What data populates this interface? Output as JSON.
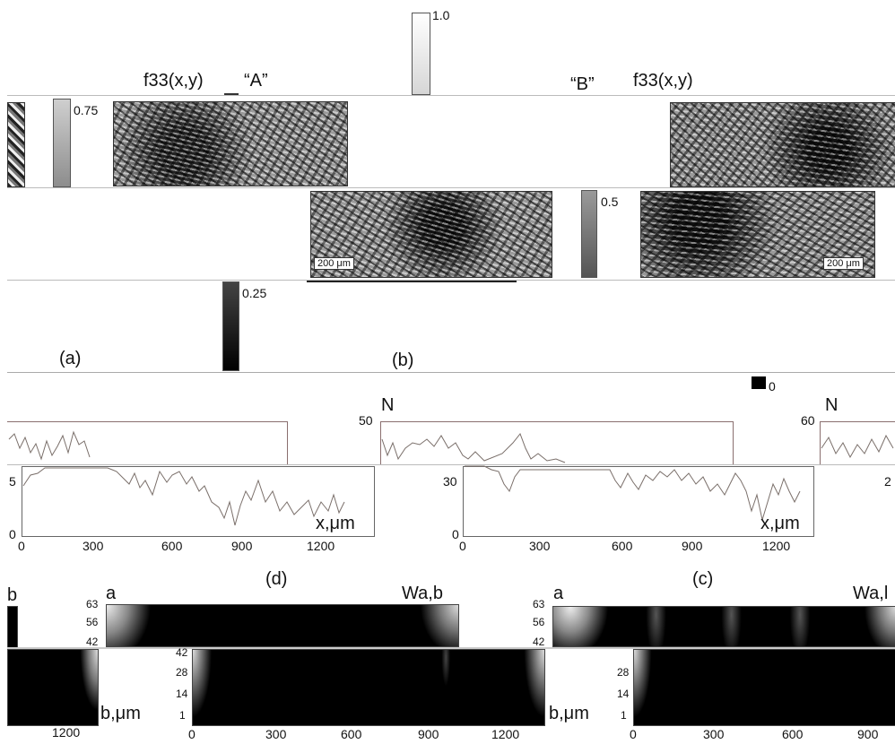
{
  "figure": {
    "maps_section": {
      "label_f33_left": "f33(x,y)",
      "label_A": "“A”",
      "label_B": "“B”",
      "label_f33_right": "f33(x,y)",
      "colorbar_ticks": [
        "1.0",
        "0.75",
        "0.5",
        "0.25",
        "0"
      ],
      "scalebar_label": "200 μm",
      "panel_a": "(a)",
      "panel_b": "(b)"
    },
    "profiles_section": {
      "ylabel": "N",
      "xlabel": "x,μm",
      "left_y_ticks": [
        "5",
        "0"
      ],
      "mid_y_ticks": [
        "50",
        "30",
        "0"
      ],
      "right_y_ticks": [
        "60",
        "2"
      ],
      "x_ticks": [
        "0",
        "300",
        "600",
        "900",
        "1200"
      ],
      "panel_d": "(d)",
      "panel_c": "(c)"
    },
    "wavelet_section": {
      "ylabel": "a",
      "xlabel": "b,μm",
      "title_left": "Wa,b",
      "title_right": "Wa,l",
      "left_cut_label": "b",
      "y_ticks_top": [
        "63",
        "56",
        "42"
      ],
      "y_ticks_bottom": [
        "42",
        "28",
        "14",
        "1"
      ],
      "x_ticks_mid": [
        "0",
        "300",
        "600",
        "900",
        "1200"
      ],
      "x_ticks_right": [
        "0",
        "300",
        "600",
        "900"
      ],
      "left_x_tick": "1200"
    }
  },
  "colors": {
    "background": "#ffffff",
    "trace": "#7a6f6a",
    "frame": "#333333"
  }
}
